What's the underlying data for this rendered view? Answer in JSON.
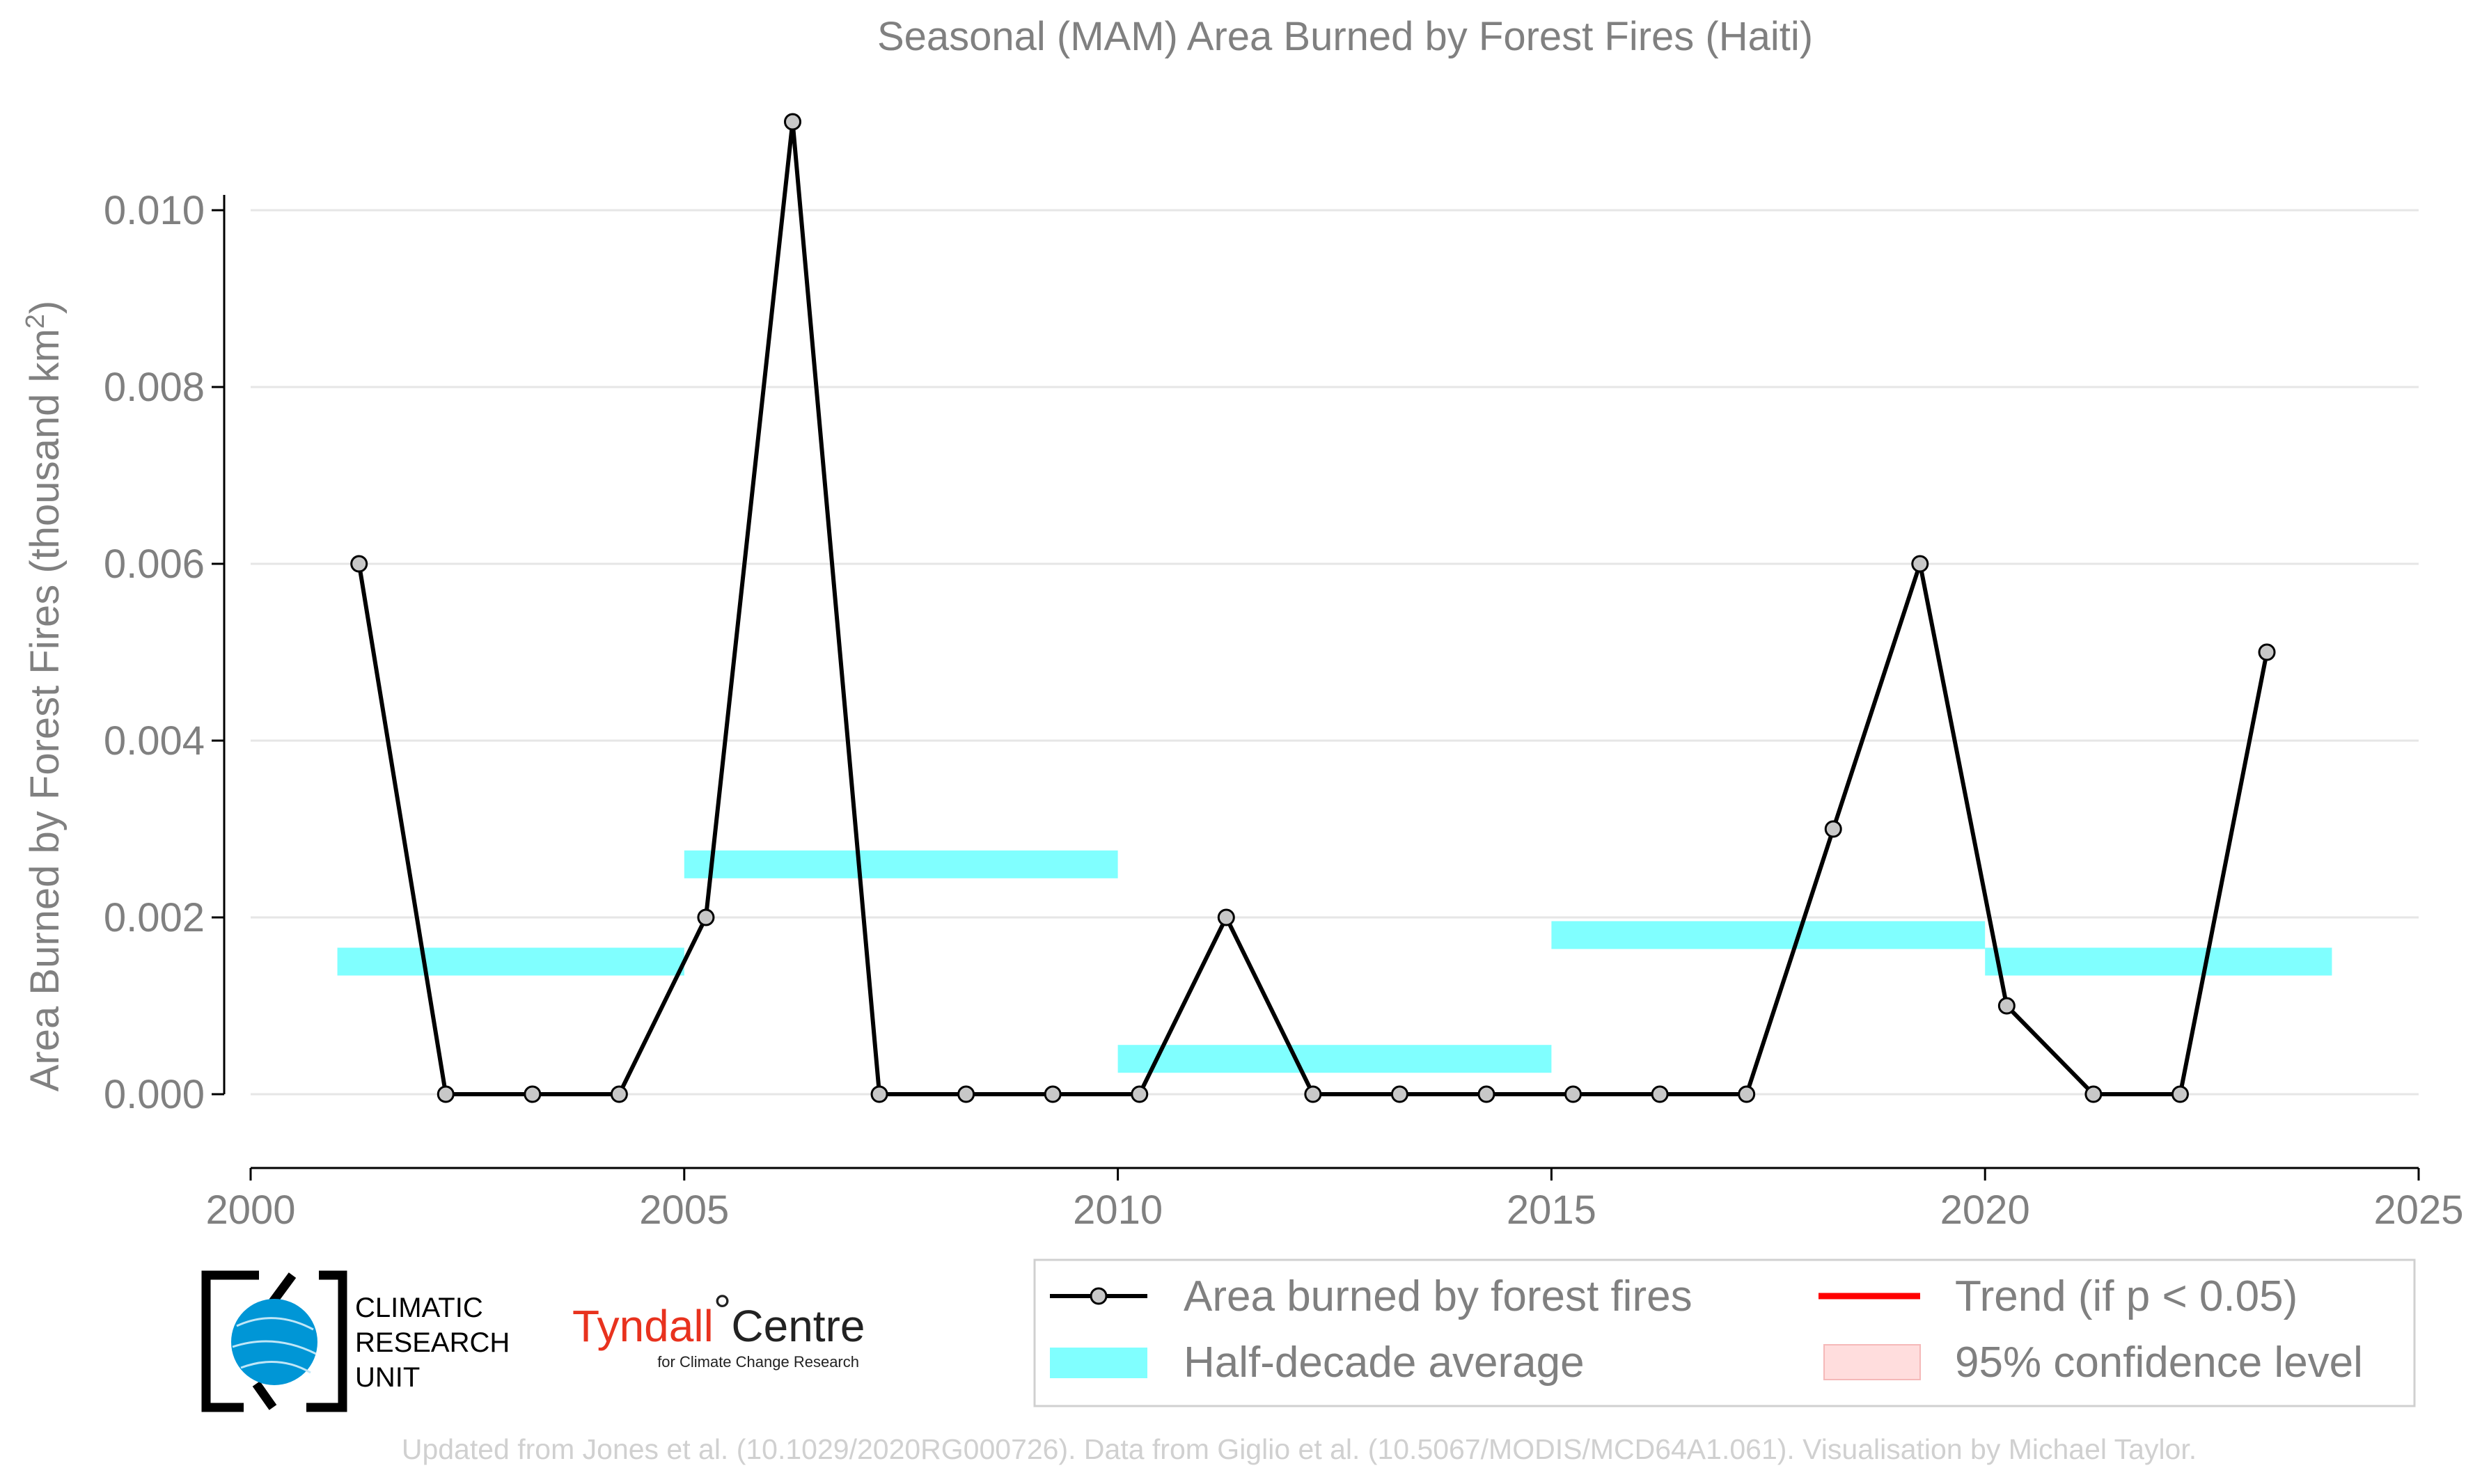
{
  "chart_data": {
    "type": "line",
    "title": "Seasonal (MAM) Area Burned by Forest Fires (Haiti)",
    "ylabel": "Area Burned by Forest Fires (thousand km²)",
    "ylabel_main": "Area Burned by Forest Fires (thousand km",
    "ylabel_sup": "2",
    "ylabel_close": ")",
    "xlabel": "",
    "xlim": [
      2000,
      2025
    ],
    "ylim": [
      -0.0008,
      0.0114
    ],
    "xticks": [
      2000,
      2005,
      2010,
      2015,
      2020,
      2025
    ],
    "yticks": [
      0.0,
      0.002,
      0.004,
      0.006,
      0.008,
      0.01
    ],
    "ytick_labels": [
      "0.000",
      "0.002",
      "0.004",
      "0.006",
      "0.008",
      "0.010"
    ],
    "grid": true,
    "legend_position": "bottom-right",
    "series": [
      {
        "name": "Area burned by forest fires",
        "color": "#000000",
        "marker_fill": "#c8c8c8",
        "x": [
          2001.25,
          2002.25,
          2003.25,
          2004.25,
          2005.25,
          2006.25,
          2007.25,
          2008.25,
          2009.25,
          2010.25,
          2011.25,
          2012.25,
          2013.25,
          2014.25,
          2015.25,
          2016.25,
          2017.25,
          2018.25,
          2019.25,
          2020.25,
          2021.25,
          2022.25,
          2023.25
        ],
        "values": [
          0.006,
          0.0,
          0.0,
          0.0,
          0.002,
          0.011,
          0.0,
          0.0,
          0.0,
          0.0,
          0.002,
          0.0,
          0.0,
          0.0,
          0.0,
          0.0,
          0.0,
          0.003,
          0.006,
          0.001,
          0.0,
          0.0,
          0.005
        ]
      }
    ],
    "half_decade_average": {
      "name": "Half-decade average",
      "color": "#80ffff",
      "segments": [
        {
          "x0": 2001,
          "x1": 2005,
          "value": 0.0015
        },
        {
          "x0": 2005,
          "x1": 2010,
          "value": 0.0026
        },
        {
          "x0": 2010,
          "x1": 2015,
          "value": 0.0004
        },
        {
          "x0": 2015,
          "x1": 2020,
          "value": 0.0018
        },
        {
          "x0": 2020,
          "x1": 2024,
          "value": 0.0015
        }
      ]
    },
    "legend": [
      {
        "label": "Area burned by forest fires",
        "kind": "line-marker",
        "color": "#000000"
      },
      {
        "label": "Trend (if p < 0.05)",
        "kind": "line",
        "color": "#ff0000"
      },
      {
        "label": "Half-decade average",
        "kind": "patch",
        "color": "#80ffff"
      },
      {
        "label": "95% confidence level",
        "kind": "patch",
        "color": "#ffdddd"
      }
    ]
  },
  "logos": {
    "cru_line1": "CLIMATIC",
    "cru_line2": "RESEARCH",
    "cru_line3": "UNIT",
    "tyndall_word": "Tyndall",
    "tyndall_degree": "°",
    "tyndall_centre": "Centre",
    "tyndall_sub": "for Climate Change Research"
  },
  "footer": "Updated from Jones et al. (10.1029/2020RG000726). Data from Giglio et al. (10.5067/MODIS/MCD64A1.061). Visualisation by Michael Taylor."
}
